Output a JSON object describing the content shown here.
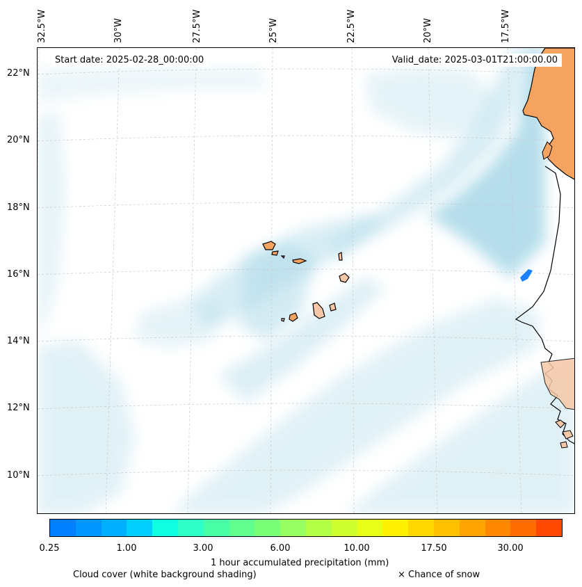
{
  "map": {
    "start_date": "Start date: 2025-02-28_00:00:00",
    "valid_date": "Valid_date: 2025-03-01T21:00:00.00",
    "lon_labels": [
      "32.5°W",
      "30°W",
      "27.5°W",
      "25°W",
      "22.5°W",
      "20°W",
      "17.5°W"
    ],
    "lat_labels": [
      "22°N",
      "20°N",
      "18°N",
      "16°N",
      "14°N",
      "12°N",
      "10°N"
    ]
  },
  "colorbar": {
    "colors": [
      "#0080ff",
      "#0096ff",
      "#00b0ff",
      "#00d0ff",
      "#10ffe0",
      "#30ffc8",
      "#48ffa8",
      "#60ff90",
      "#7cff78",
      "#98ff60",
      "#b4ff48",
      "#d0ff30",
      "#e8ff18",
      "#fff000",
      "#ffd800",
      "#ffc000",
      "#ffa400",
      "#ff8800",
      "#ff6c00",
      "#ff4800"
    ],
    "tick_labels": [
      "0.25",
      "1.00",
      "3.00",
      "6.00",
      "10.00",
      "17.50",
      "30.00"
    ],
    "label": "1 hour accumulated precipitation (mm)"
  },
  "legend": {
    "cloud_cover": "Cloud cover (white background shading)",
    "snow": "× Chance of snow"
  }
}
